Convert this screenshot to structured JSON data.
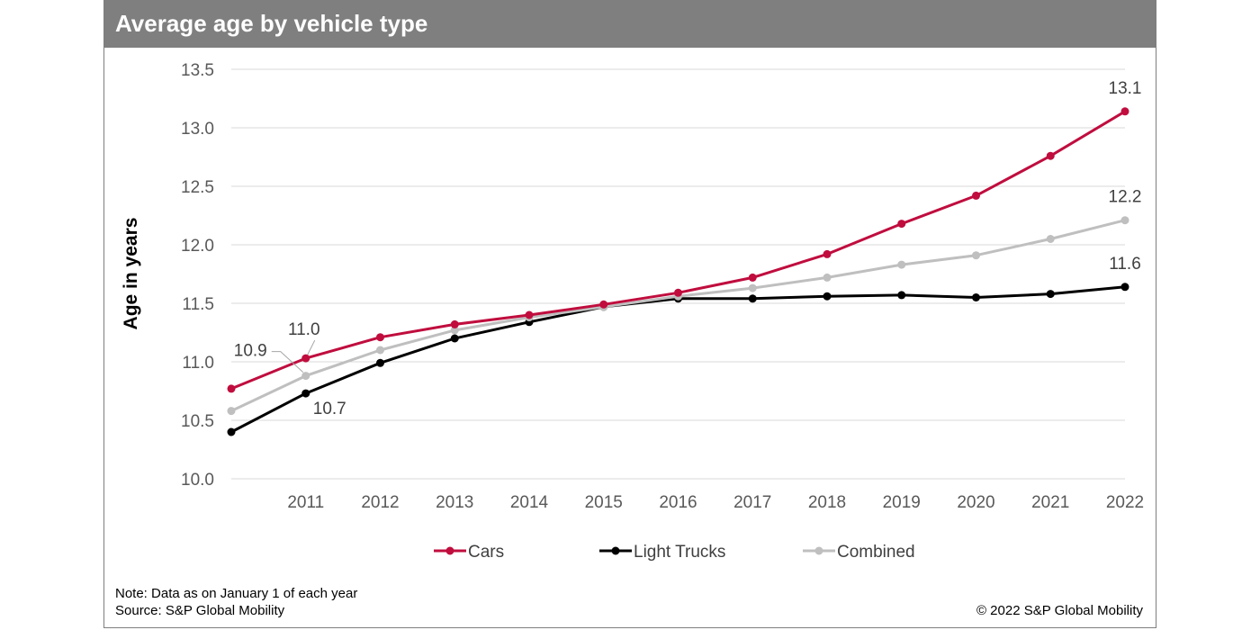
{
  "title": "Average age by vehicle type",
  "note": "Note: Data as on January 1 of each year",
  "source": "Source: S&P Global Mobility",
  "copyright": "© 2022 S&P Global Mobility",
  "chart_data": {
    "type": "line",
    "title": "Average age by vehicle type",
    "xlabel": "",
    "ylabel": "Age in years",
    "ylim": [
      10.0,
      13.5
    ],
    "yticks": [
      "10.0",
      "10.5",
      "11.0",
      "11.5",
      "12.0",
      "12.5",
      "13.0",
      "13.5"
    ],
    "x": [
      2010,
      2011,
      2012,
      2013,
      2014,
      2015,
      2016,
      2017,
      2018,
      2019,
      2020,
      2021,
      2022
    ],
    "xtick_labels": [
      "",
      "2011",
      "2012",
      "2013",
      "2014",
      "2015",
      "2016",
      "2017",
      "2018",
      "2019",
      "2020",
      "2021",
      "2022"
    ],
    "grid": "horizontal",
    "legend": "bottom",
    "series": [
      {
        "name": "Cars",
        "color": "#c00d3e",
        "values": [
          10.77,
          11.03,
          11.21,
          11.32,
          11.4,
          11.49,
          11.59,
          11.72,
          11.92,
          12.18,
          12.42,
          12.76,
          13.14
        ]
      },
      {
        "name": "Light Trucks",
        "color": "#000000",
        "values": [
          10.4,
          10.73,
          10.99,
          11.2,
          11.34,
          11.47,
          11.54,
          11.54,
          11.56,
          11.57,
          11.55,
          11.58,
          11.64
        ]
      },
      {
        "name": "Combined",
        "color": "#bfbfbf",
        "values": [
          10.58,
          10.88,
          11.1,
          11.27,
          11.38,
          11.47,
          11.56,
          11.63,
          11.72,
          11.83,
          11.91,
          12.05,
          12.21
        ]
      }
    ],
    "annotations": [
      {
        "text": "13.1",
        "series": "Cars",
        "x": 2022
      },
      {
        "text": "12.2",
        "series": "Combined",
        "x": 2022
      },
      {
        "text": "11.6",
        "series": "Light Trucks",
        "x": 2022
      },
      {
        "text": "11.0",
        "series": "Cars",
        "x": 2011
      },
      {
        "text": "10.9",
        "series": "Combined",
        "x": 2011
      },
      {
        "text": "10.7",
        "series": "Light Trucks",
        "x": 2011
      }
    ]
  }
}
